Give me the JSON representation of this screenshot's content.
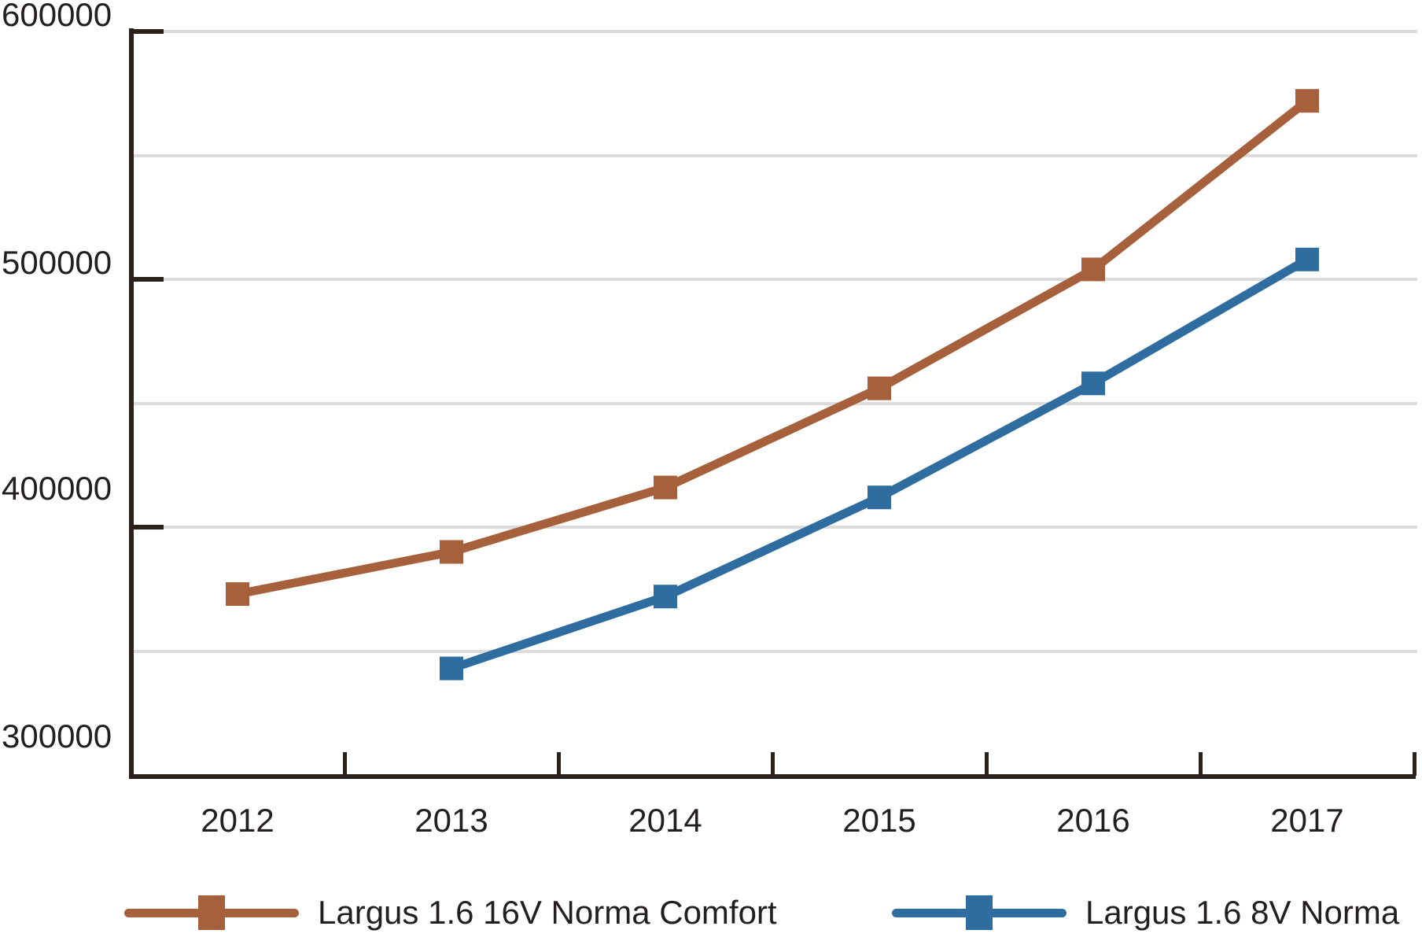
{
  "colors": {
    "axis": "#2B211C",
    "grid": "#DCDCDC",
    "text": "#231F20",
    "background": "#FFFFFF"
  },
  "chart_data": {
    "type": "line",
    "title": "",
    "xlabel": "",
    "ylabel": "",
    "categories": [
      "2012",
      "2013",
      "2014",
      "2015",
      "2016",
      "2017"
    ],
    "series": [
      {
        "name": "Largus 1.6 16V Norma Comfort",
        "color": "#A6613C",
        "marker": "square",
        "values": [
          373000,
          390000,
          416000,
          456000,
          504000,
          572000
        ]
      },
      {
        "name": "Largus 1.6 8V Norma",
        "color": "#2F6DA1",
        "marker": "square",
        "values": [
          null,
          343000,
          372000,
          412000,
          458000,
          508000
        ]
      }
    ],
    "ylim": [
      300000,
      600000
    ],
    "yticks": [
      300000,
      400000,
      500000,
      600000
    ],
    "ytick_labels": [
      "300000",
      "400000",
      "500000",
      "600000"
    ],
    "grid_step": 50000,
    "grid": "horizontal",
    "legend_position": "bottom"
  }
}
